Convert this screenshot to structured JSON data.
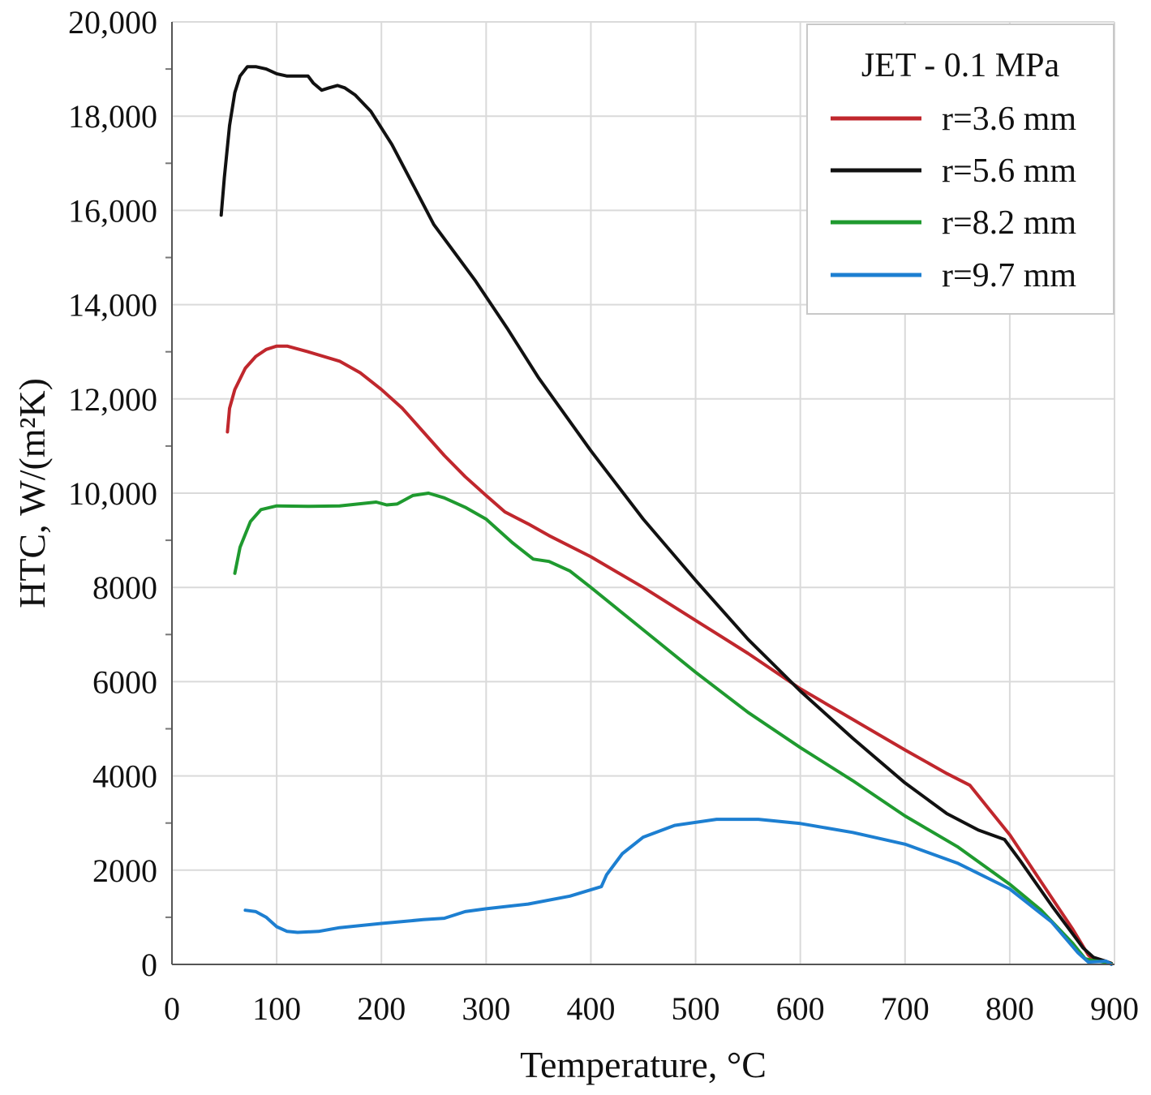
{
  "chart_data": {
    "type": "line",
    "title": "",
    "xlabel": "Temperature, °C",
    "ylabel": "HTC, W/(m²K)",
    "xlim": [
      0,
      900
    ],
    "ylim": [
      0,
      20000
    ],
    "x_ticks": [
      0,
      100,
      200,
      300,
      400,
      500,
      600,
      700,
      800,
      900
    ],
    "x_tick_labels": [
      "0",
      "100",
      "200",
      "300",
      "400",
      "500",
      "600",
      "700",
      "800",
      "900"
    ],
    "y_ticks": [
      0,
      2000,
      4000,
      6000,
      8000,
      10000,
      12000,
      14000,
      16000,
      18000,
      20000
    ],
    "y_tick_labels": [
      "0",
      "2000",
      "4000",
      "6000",
      "8000",
      "10,000",
      "12,000",
      "14,000",
      "16,000",
      "18,000",
      "20,000"
    ],
    "grid": true,
    "legend": {
      "title": "JET - 0.1 MPa",
      "position": "top-right"
    },
    "series": [
      {
        "name": "r=3.6 mm",
        "color": "#c0272d",
        "points": [
          [
            53,
            11300
          ],
          [
            55,
            11800
          ],
          [
            60,
            12200
          ],
          [
            70,
            12650
          ],
          [
            80,
            12900
          ],
          [
            90,
            13050
          ],
          [
            100,
            13120
          ],
          [
            110,
            13120
          ],
          [
            130,
            13000
          ],
          [
            160,
            12800
          ],
          [
            180,
            12550
          ],
          [
            200,
            12200
          ],
          [
            220,
            11800
          ],
          [
            240,
            11300
          ],
          [
            260,
            10800
          ],
          [
            280,
            10350
          ],
          [
            300,
            9950
          ],
          [
            318,
            9600
          ],
          [
            340,
            9350
          ],
          [
            360,
            9100
          ],
          [
            400,
            8650
          ],
          [
            450,
            8000
          ],
          [
            500,
            7300
          ],
          [
            550,
            6600
          ],
          [
            600,
            5850
          ],
          [
            650,
            5200
          ],
          [
            700,
            4550
          ],
          [
            740,
            4050
          ],
          [
            762,
            3800
          ],
          [
            780,
            3300
          ],
          [
            800,
            2750
          ],
          [
            830,
            1750
          ],
          [
            860,
            750
          ],
          [
            875,
            200
          ],
          [
            880,
            100
          ],
          [
            890,
            80
          ],
          [
            897,
            20
          ]
        ]
      },
      {
        "name": "r=5.6 mm",
        "color": "#111111",
        "points": [
          [
            47,
            15900
          ],
          [
            50,
            16700
          ],
          [
            55,
            17800
          ],
          [
            60,
            18500
          ],
          [
            65,
            18850
          ],
          [
            72,
            19050
          ],
          [
            80,
            19050
          ],
          [
            90,
            19000
          ],
          [
            100,
            18900
          ],
          [
            110,
            18850
          ],
          [
            120,
            18850
          ],
          [
            130,
            18850
          ],
          [
            135,
            18700
          ],
          [
            143,
            18550
          ],
          [
            150,
            18600
          ],
          [
            158,
            18650
          ],
          [
            165,
            18600
          ],
          [
            175,
            18450
          ],
          [
            190,
            18100
          ],
          [
            210,
            17400
          ],
          [
            230,
            16550
          ],
          [
            250,
            15700
          ],
          [
            270,
            15100
          ],
          [
            290,
            14500
          ],
          [
            320,
            13500
          ],
          [
            350,
            12450
          ],
          [
            400,
            10900
          ],
          [
            450,
            9450
          ],
          [
            500,
            8150
          ],
          [
            550,
            6900
          ],
          [
            600,
            5800
          ],
          [
            650,
            4800
          ],
          [
            700,
            3850
          ],
          [
            740,
            3200
          ],
          [
            770,
            2850
          ],
          [
            795,
            2650
          ],
          [
            810,
            2200
          ],
          [
            840,
            1250
          ],
          [
            870,
            350
          ],
          [
            880,
            150
          ],
          [
            890,
            80
          ],
          [
            897,
            20
          ]
        ]
      },
      {
        "name": "r=8.2 mm",
        "color": "#1f9a2f",
        "points": [
          [
            60,
            8300
          ],
          [
            65,
            8850
          ],
          [
            75,
            9400
          ],
          [
            85,
            9650
          ],
          [
            100,
            9730
          ],
          [
            130,
            9720
          ],
          [
            160,
            9730
          ],
          [
            195,
            9810
          ],
          [
            205,
            9750
          ],
          [
            215,
            9770
          ],
          [
            230,
            9950
          ],
          [
            245,
            10000
          ],
          [
            260,
            9900
          ],
          [
            280,
            9700
          ],
          [
            300,
            9450
          ],
          [
            325,
            8950
          ],
          [
            345,
            8600
          ],
          [
            360,
            8550
          ],
          [
            380,
            8350
          ],
          [
            400,
            8000
          ],
          [
            450,
            7100
          ],
          [
            500,
            6200
          ],
          [
            550,
            5350
          ],
          [
            600,
            4600
          ],
          [
            650,
            3900
          ],
          [
            700,
            3150
          ],
          [
            750,
            2500
          ],
          [
            800,
            1700
          ],
          [
            830,
            1150
          ],
          [
            860,
            450
          ],
          [
            872,
            120
          ],
          [
            880,
            80
          ],
          [
            890,
            50
          ],
          [
            897,
            10
          ]
        ]
      },
      {
        "name": "r=9.7 mm",
        "color": "#1d7fd1",
        "points": [
          [
            70,
            1150
          ],
          [
            80,
            1120
          ],
          [
            90,
            1000
          ],
          [
            100,
            800
          ],
          [
            110,
            700
          ],
          [
            120,
            680
          ],
          [
            140,
            700
          ],
          [
            160,
            780
          ],
          [
            200,
            870
          ],
          [
            240,
            950
          ],
          [
            260,
            980
          ],
          [
            280,
            1120
          ],
          [
            300,
            1180
          ],
          [
            340,
            1280
          ],
          [
            380,
            1450
          ],
          [
            410,
            1650
          ],
          [
            415,
            1900
          ],
          [
            430,
            2350
          ],
          [
            450,
            2700
          ],
          [
            480,
            2950
          ],
          [
            520,
            3080
          ],
          [
            560,
            3080
          ],
          [
            600,
            2990
          ],
          [
            650,
            2800
          ],
          [
            700,
            2550
          ],
          [
            750,
            2150
          ],
          [
            800,
            1600
          ],
          [
            840,
            900
          ],
          [
            865,
            250
          ],
          [
            875,
            50
          ],
          [
            885,
            60
          ],
          [
            892,
            70
          ],
          [
            897,
            0
          ]
        ]
      }
    ]
  }
}
